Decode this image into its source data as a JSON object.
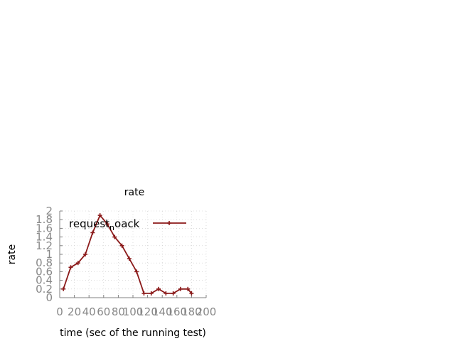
{
  "chart_data": {
    "type": "line",
    "title": "rate",
    "xlabel": "time (sec of the running test)",
    "ylabel": "rate",
    "xlim": [
      0,
      200
    ],
    "ylim": [
      0,
      2
    ],
    "x_ticks": [
      0,
      20,
      40,
      60,
      80,
      100,
      120,
      140,
      160,
      180,
      200
    ],
    "y_ticks": [
      "0",
      "0.2",
      "0.4",
      "0.6",
      "0.8",
      "1",
      "1.2",
      "1.4",
      "1.6",
      "1.8",
      "2"
    ],
    "grid": true,
    "legend_position": "top-left",
    "series": [
      {
        "name": "request_noack",
        "legend_label_parts": {
          "before": "request",
          "subscript": "n",
          "after": "oack"
        },
        "color": "#8b1a1a",
        "marker": "plus",
        "points": [
          {
            "x": 5,
            "y": 0.2
          },
          {
            "x": 15,
            "y": 0.7
          },
          {
            "x": 25,
            "y": 0.8
          },
          {
            "x": 35,
            "y": 1.0
          },
          {
            "x": 45,
            "y": 1.5
          },
          {
            "x": 55,
            "y": 1.9
          },
          {
            "x": 65,
            "y": 1.7
          },
          {
            "x": 75,
            "y": 1.4
          },
          {
            "x": 85,
            "y": 1.2
          },
          {
            "x": 95,
            "y": 0.9
          },
          {
            "x": 105,
            "y": 0.6
          },
          {
            "x": 115,
            "y": 0.1
          },
          {
            "x": 125,
            "y": 0.1
          },
          {
            "x": 135,
            "y": 0.2
          },
          {
            "x": 145,
            "y": 0.1
          },
          {
            "x": 155,
            "y": 0.1
          },
          {
            "x": 165,
            "y": 0.2
          },
          {
            "x": 175,
            "y": 0.2
          },
          {
            "x": 180,
            "y": 0.1
          }
        ]
      }
    ]
  }
}
